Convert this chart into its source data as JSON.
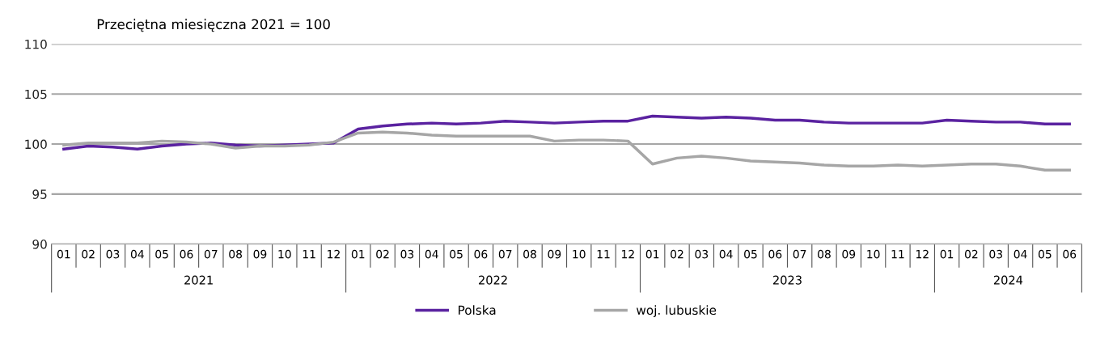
{
  "chart_data": {
    "type": "line",
    "subtitle": "Przeciętna miesięczna 2021 = 100",
    "categories": [
      "01",
      "02",
      "03",
      "04",
      "05",
      "06",
      "07",
      "08",
      "09",
      "10",
      "11",
      "12",
      "01",
      "02",
      "03",
      "04",
      "05",
      "06",
      "07",
      "08",
      "09",
      "10",
      "11",
      "12",
      "01",
      "02",
      "03",
      "04",
      "05",
      "06",
      "07",
      "08",
      "09",
      "10",
      "11",
      "12",
      "01",
      "02",
      "03",
      "04",
      "05",
      "06"
    ],
    "series": [
      {
        "name": "Polska",
        "color": "#5a22a0",
        "values": [
          99.5,
          99.8,
          99.7,
          99.5,
          99.8,
          100.0,
          100.1,
          99.9,
          99.8,
          99.9,
          100.0,
          100.1,
          101.5,
          101.8,
          102.0,
          102.1,
          102.0,
          102.1,
          102.3,
          102.2,
          102.1,
          102.2,
          102.3,
          102.3,
          102.8,
          102.7,
          102.6,
          102.7,
          102.6,
          102.4,
          102.4,
          102.2,
          102.1,
          102.1,
          102.1,
          102.1,
          102.4,
          102.3,
          102.2,
          102.2,
          102.0,
          102.0
        ]
      },
      {
        "name": "woj. lubuskie",
        "color": "#a6a6a6",
        "values": [
          99.9,
          100.1,
          100.1,
          100.1,
          100.3,
          100.2,
          100.0,
          99.6,
          99.8,
          99.8,
          99.9,
          100.2,
          101.1,
          101.2,
          101.1,
          100.9,
          100.8,
          100.8,
          100.8,
          100.8,
          100.3,
          100.4,
          100.4,
          100.3,
          98.0,
          98.6,
          98.8,
          98.6,
          98.3,
          98.2,
          98.1,
          97.9,
          97.8,
          97.8,
          97.9,
          97.8,
          97.9,
          98.0,
          98.0,
          97.8,
          97.4,
          97.4
        ]
      }
    ],
    "annotations": [
      "2021",
      "2022",
      "2023",
      "2024"
    ],
    "ylim": [
      90,
      110
    ],
    "yticks": [
      90,
      95,
      100,
      105,
      110
    ],
    "grid": "y",
    "legend": "bottom",
    "marker": "none",
    "line_style": "solid"
  }
}
